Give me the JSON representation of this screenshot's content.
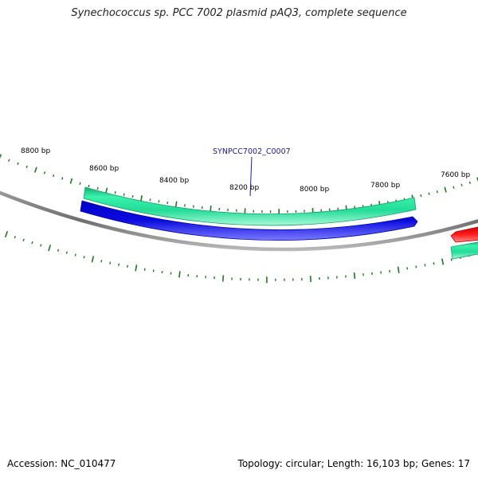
{
  "title": "Synechococcus sp. PCC 7002 plasmid pAQ3, complete sequence",
  "accession": "Accession: NC_010477",
  "summary": "Topology: circular; Length: 16,103 bp; Genes: 17",
  "ruler": {
    "labels": [
      "8800 bp",
      "8600 bp",
      "8400 bp",
      "8200 bp",
      "8000 bp",
      "7800 bp",
      "7600 bp"
    ]
  },
  "gene_label": "SYNPCC7002_C0007",
  "colors": {
    "backbone": "#8a8a8a",
    "forward_track": "#2ee8a0",
    "reverse_track": "#0a0ad8",
    "other_feature": "#ee1111",
    "tick": "#1a7a1a",
    "gene_label": "#1a1aa0"
  }
}
